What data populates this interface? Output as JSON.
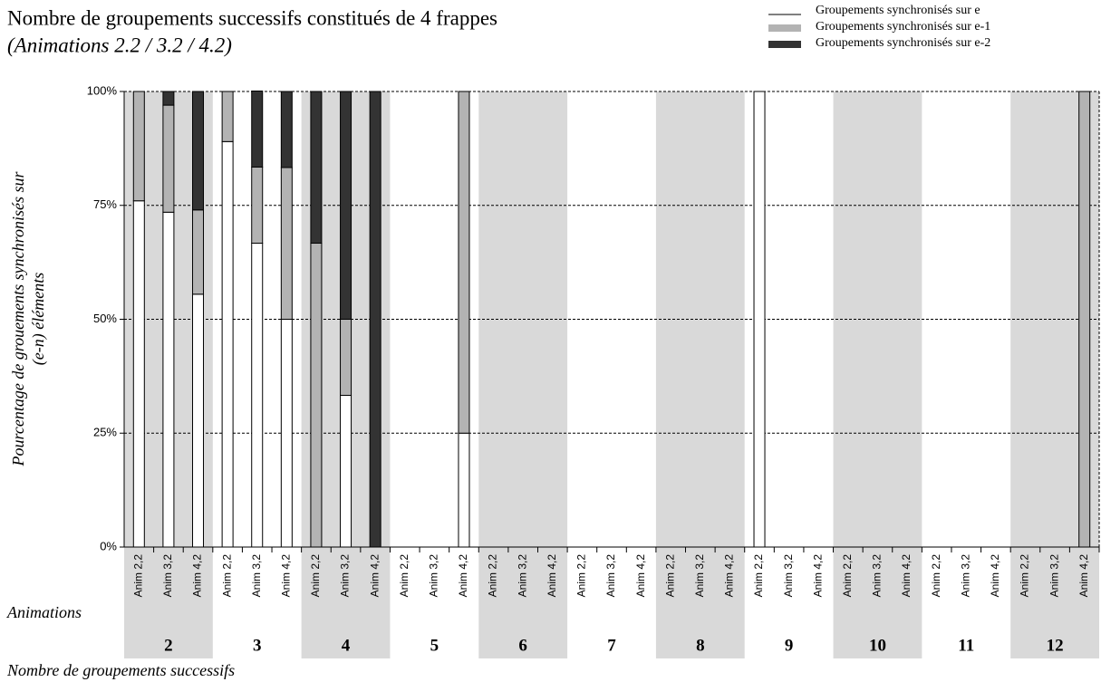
{
  "chart_data": {
    "type": "bar",
    "stacked": true,
    "title": "Nombre de groupements successifs constitués de 4 frappes",
    "subtitle": "(Animations 2.2 / 3.2 / 4.2)",
    "y_label": [
      "Pourcentage de grouements synchronisés sur",
      "(e-n) éléments"
    ],
    "category_axis_label": "Animations",
    "group_axis_label": "Nombre de groupements successifs",
    "groups": [
      "2",
      "3",
      "4",
      "5",
      "6",
      "7",
      "8",
      "9",
      "10",
      "11",
      "12"
    ],
    "categories": [
      "Anim 2,2",
      "Anim 3,2",
      "Anim 4,2",
      "Anim 2,2",
      "Anim 3,2",
      "Anim 4,2",
      "Anim 2,2",
      "Anim 3,2",
      "Anim 4,2",
      "Anim 2,2",
      "Anim 3,2",
      "Anim 4,2",
      "Anim 2,2",
      "Anim 3,2",
      "Anim 4,2",
      "Anim 2,2",
      "Anim 3,2",
      "Anim 4,2",
      "Anim 2,2",
      "Anim 3,2",
      "Anim 4,2",
      "Anim 2,2",
      "Anim 3,2",
      "Anim 4,2",
      "Anim 2,2",
      "Anim 3,2",
      "Anim 4,2",
      "Anim 2,2",
      "Anim 3,2",
      "Anim 4,2",
      "Anim 2,2",
      "Anim 3,2",
      "Anim 4,2"
    ],
    "series": [
      {
        "name": "Groupements synchronisés sur e",
        "color": "#ffffff",
        "values": [
          76,
          73.5,
          55.5,
          89,
          66.7,
          50,
          0,
          33.3,
          0,
          0,
          0,
          25,
          0,
          0,
          0,
          0,
          0,
          0,
          0,
          0,
          0,
          100,
          0,
          0,
          0,
          0,
          0,
          0,
          0,
          0,
          0,
          0,
          0
        ]
      },
      {
        "name": "Groupements synchronisés sur e-1",
        "color": "#b3b3b3",
        "values": [
          24,
          23.5,
          18.5,
          11,
          16.7,
          33.3,
          66.7,
          16.7,
          0,
          0,
          0,
          75,
          0,
          0,
          0,
          0,
          0,
          0,
          0,
          0,
          0,
          0,
          0,
          0,
          0,
          0,
          0,
          0,
          0,
          0,
          0,
          0,
          100
        ]
      },
      {
        "name": "Groupements synchronisés sur e-2",
        "color": "#333333",
        "values": [
          0,
          3,
          26,
          0,
          16.7,
          16.7,
          33.3,
          50,
          100,
          0,
          0,
          0,
          0,
          0,
          0,
          0,
          0,
          0,
          0,
          0,
          0,
          0,
          0,
          0,
          0,
          0,
          0,
          0,
          0,
          0,
          0,
          0,
          0
        ]
      }
    ],
    "ylim": [
      0,
      100
    ],
    "yticks": [
      {
        "value": 0,
        "label": "0%"
      },
      {
        "value": 25,
        "label": "25%"
      },
      {
        "value": 50,
        "label": "50%"
      },
      {
        "value": 75,
        "label": "75%"
      },
      {
        "value": 100,
        "label": "100%"
      }
    ],
    "grid": true,
    "legend": "top-right",
    "band_color": "#d9d9d9"
  }
}
